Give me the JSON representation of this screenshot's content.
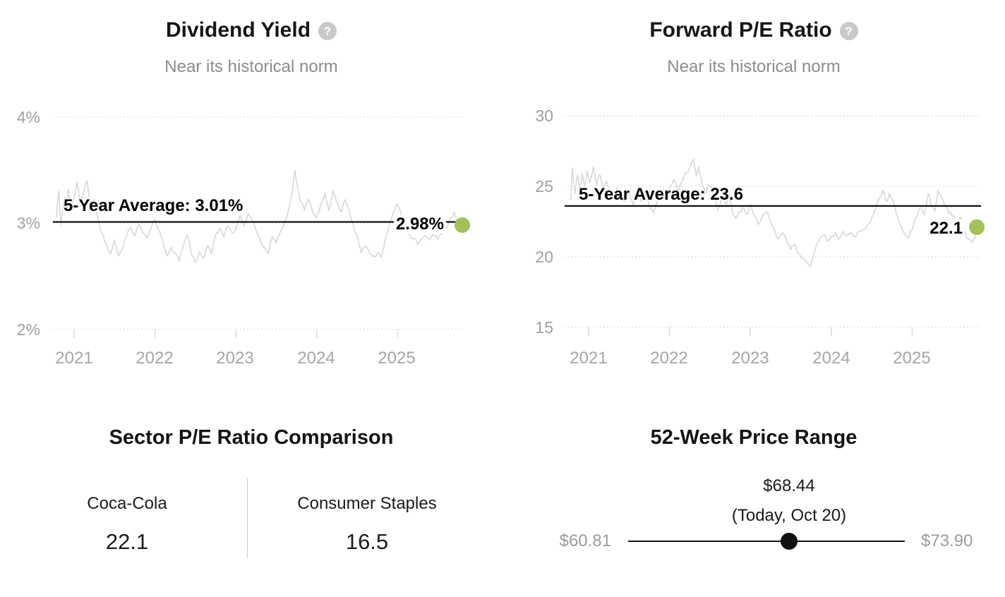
{
  "icons": {
    "help_glyph": "?"
  },
  "colors": {
    "accent_dot": "#a4c05a",
    "series_line": "#d8d8d8",
    "average_line": "#111111",
    "grid_dotted": "#d0d0d0",
    "tick_mark": "#d9d9d9"
  },
  "chart_data": [
    {
      "type": "line",
      "title": "Dividend Yield",
      "subtitle": "Near its historical norm",
      "unit": "%",
      "x_range": [
        2020.78,
        2025.8
      ],
      "x_tick_labels": [
        "2021",
        "2022",
        "2023",
        "2024",
        "2025"
      ],
      "x_ticks": [
        2021,
        2022,
        2023,
        2024,
        2025
      ],
      "y_gridlines": [
        4,
        3,
        2
      ],
      "y_tick_labels": [
        "4%",
        "3%",
        "2%"
      ],
      "grid": true,
      "average": {
        "label": "5-Year Average: 3.01%",
        "value": 3.01
      },
      "current": {
        "label": "2.98%",
        "value": 2.98
      },
      "series": [
        [
          2020.78,
          3.05
        ],
        [
          2020.81,
          3.3
        ],
        [
          2020.84,
          2.98
        ],
        [
          2020.87,
          3.2
        ],
        [
          2020.9,
          3.1
        ],
        [
          2020.93,
          3.32
        ],
        [
          2020.96,
          3.15
        ],
        [
          2021.0,
          3.25
        ],
        [
          2021.04,
          3.38
        ],
        [
          2021.08,
          3.16
        ],
        [
          2021.12,
          3.3
        ],
        [
          2021.16,
          3.4
        ],
        [
          2021.2,
          3.18
        ],
        [
          2021.25,
          3.22
        ],
        [
          2021.3,
          3.02
        ],
        [
          2021.35,
          2.9
        ],
        [
          2021.4,
          2.8
        ],
        [
          2021.45,
          2.71
        ],
        [
          2021.5,
          2.84
        ],
        [
          2021.55,
          2.69
        ],
        [
          2021.6,
          2.76
        ],
        [
          2021.65,
          2.88
        ],
        [
          2021.7,
          2.96
        ],
        [
          2021.75,
          2.88
        ],
        [
          2021.8,
          2.99
        ],
        [
          2021.85,
          2.91
        ],
        [
          2021.9,
          2.86
        ],
        [
          2021.95,
          2.95
        ],
        [
          2022.0,
          3.03
        ],
        [
          2022.05,
          2.93
        ],
        [
          2022.1,
          2.81
        ],
        [
          2022.15,
          2.69
        ],
        [
          2022.2,
          2.77
        ],
        [
          2022.25,
          2.72
        ],
        [
          2022.3,
          2.64
        ],
        [
          2022.35,
          2.79
        ],
        [
          2022.4,
          2.89
        ],
        [
          2022.45,
          2.71
        ],
        [
          2022.5,
          2.63
        ],
        [
          2022.55,
          2.73
        ],
        [
          2022.6,
          2.67
        ],
        [
          2022.65,
          2.79
        ],
        [
          2022.7,
          2.71
        ],
        [
          2022.75,
          2.89
        ],
        [
          2022.8,
          2.95
        ],
        [
          2022.85,
          2.87
        ],
        [
          2022.9,
          2.97
        ],
        [
          2022.95,
          2.91
        ],
        [
          2023.0,
          2.95
        ],
        [
          2023.05,
          3.07
        ],
        [
          2023.1,
          2.97
        ],
        [
          2023.15,
          3.09
        ],
        [
          2023.2,
          3.03
        ],
        [
          2023.25,
          2.93
        ],
        [
          2023.3,
          2.85
        ],
        [
          2023.35,
          2.77
        ],
        [
          2023.4,
          2.71
        ],
        [
          2023.45,
          2.87
        ],
        [
          2023.5,
          2.81
        ],
        [
          2023.55,
          2.92
        ],
        [
          2023.6,
          3.0
        ],
        [
          2023.65,
          3.12
        ],
        [
          2023.7,
          3.3
        ],
        [
          2023.73,
          3.5
        ],
        [
          2023.76,
          3.35
        ],
        [
          2023.8,
          3.2
        ],
        [
          2023.85,
          3.12
        ],
        [
          2023.9,
          3.22
        ],
        [
          2023.95,
          3.1
        ],
        [
          2024.0,
          3.05
        ],
        [
          2024.05,
          3.18
        ],
        [
          2024.1,
          3.28
        ],
        [
          2024.15,
          3.12
        ],
        [
          2024.2,
          3.3
        ],
        [
          2024.25,
          3.2
        ],
        [
          2024.3,
          3.1
        ],
        [
          2024.35,
          3.22
        ],
        [
          2024.4,
          3.12
        ],
        [
          2024.45,
          2.98
        ],
        [
          2024.5,
          2.88
        ],
        [
          2024.55,
          2.72
        ],
        [
          2024.6,
          2.78
        ],
        [
          2024.65,
          2.72
        ],
        [
          2024.7,
          2.68
        ],
        [
          2024.75,
          2.72
        ],
        [
          2024.8,
          2.68
        ],
        [
          2024.85,
          2.85
        ],
        [
          2024.9,
          3.0
        ],
        [
          2024.95,
          3.1
        ],
        [
          2025.0,
          3.18
        ],
        [
          2025.05,
          3.05
        ],
        [
          2025.1,
          2.95
        ],
        [
          2025.15,
          2.88
        ],
        [
          2025.2,
          2.85
        ],
        [
          2025.25,
          2.8
        ],
        [
          2025.3,
          2.85
        ],
        [
          2025.35,
          2.88
        ],
        [
          2025.4,
          2.84
        ],
        [
          2025.45,
          2.88
        ],
        [
          2025.5,
          2.85
        ],
        [
          2025.55,
          2.9
        ],
        [
          2025.6,
          2.95
        ],
        [
          2025.65,
          3.05
        ],
        [
          2025.7,
          3.1
        ],
        [
          2025.74,
          2.98
        ],
        [
          2025.78,
          2.94
        ],
        [
          2025.8,
          2.98
        ]
      ]
    },
    {
      "type": "line",
      "title": "Forward P/E Ratio",
      "subtitle": "Near its historical norm",
      "unit": "",
      "x_range": [
        2020.78,
        2025.8
      ],
      "x_tick_labels": [
        "2021",
        "2022",
        "2023",
        "2024",
        "2025"
      ],
      "x_ticks": [
        2021,
        2022,
        2023,
        2024,
        2025
      ],
      "y_gridlines": [
        30,
        25,
        20,
        15
      ],
      "y_tick_labels": [
        "30",
        "25",
        "20",
        "15"
      ],
      "grid": true,
      "average": {
        "label": "5-Year Average: 23.6",
        "value": 23.6
      },
      "current": {
        "label": "22.1",
        "value": 22.1
      },
      "series": [
        [
          2020.78,
          24.0
        ],
        [
          2020.8,
          26.3
        ],
        [
          2020.83,
          24.5
        ],
        [
          2020.86,
          25.8
        ],
        [
          2020.89,
          24.8
        ],
        [
          2020.92,
          25.9
        ],
        [
          2020.95,
          25.0
        ],
        [
          2020.98,
          26.1
        ],
        [
          2021.02,
          25.3
        ],
        [
          2021.06,
          26.4
        ],
        [
          2021.1,
          25.1
        ],
        [
          2021.14,
          25.8
        ],
        [
          2021.18,
          24.9
        ],
        [
          2021.22,
          25.4
        ],
        [
          2021.26,
          24.5
        ],
        [
          2021.3,
          24.1
        ],
        [
          2021.35,
          24.9
        ],
        [
          2021.4,
          24.3
        ],
        [
          2021.45,
          23.9
        ],
        [
          2021.5,
          24.6
        ],
        [
          2021.55,
          23.7
        ],
        [
          2021.6,
          24.5
        ],
        [
          2021.65,
          23.9
        ],
        [
          2021.7,
          24.7
        ],
        [
          2021.75,
          23.6
        ],
        [
          2021.8,
          23.1
        ],
        [
          2021.85,
          23.9
        ],
        [
          2021.9,
          24.5
        ],
        [
          2021.95,
          24.1
        ],
        [
          2022.0,
          24.9
        ],
        [
          2022.05,
          25.5
        ],
        [
          2022.1,
          24.7
        ],
        [
          2022.15,
          25.3
        ],
        [
          2022.2,
          26.0
        ],
        [
          2022.25,
          26.3
        ],
        [
          2022.3,
          26.9
        ],
        [
          2022.33,
          25.7
        ],
        [
          2022.36,
          26.4
        ],
        [
          2022.4,
          25.3
        ],
        [
          2022.44,
          24.5
        ],
        [
          2022.48,
          25.1
        ],
        [
          2022.52,
          24.9
        ],
        [
          2022.56,
          24.1
        ],
        [
          2022.6,
          23.3
        ],
        [
          2022.65,
          24.3
        ],
        [
          2022.7,
          23.7
        ],
        [
          2022.74,
          24.4
        ],
        [
          2022.78,
          23.1
        ],
        [
          2022.82,
          22.7
        ],
        [
          2022.86,
          23.2
        ],
        [
          2022.9,
          23.5
        ],
        [
          2022.95,
          23.0
        ],
        [
          2023.0,
          23.7
        ],
        [
          2023.05,
          22.9
        ],
        [
          2023.1,
          22.3
        ],
        [
          2023.15,
          22.9
        ],
        [
          2023.2,
          23.2
        ],
        [
          2023.25,
          22.5
        ],
        [
          2023.3,
          21.9
        ],
        [
          2023.35,
          21.3
        ],
        [
          2023.4,
          21.7
        ],
        [
          2023.45,
          21.1
        ],
        [
          2023.5,
          20.5
        ],
        [
          2023.55,
          20.9
        ],
        [
          2023.6,
          20.2
        ],
        [
          2023.65,
          19.9
        ],
        [
          2023.7,
          19.6
        ],
        [
          2023.75,
          19.4
        ],
        [
          2023.8,
          20.5
        ],
        [
          2023.85,
          21.1
        ],
        [
          2023.9,
          21.5
        ],
        [
          2023.95,
          21.1
        ],
        [
          2024.0,
          21.4
        ],
        [
          2024.05,
          21.7
        ],
        [
          2024.1,
          21.3
        ],
        [
          2024.15,
          21.8
        ],
        [
          2024.2,
          21.5
        ],
        [
          2024.25,
          21.7
        ],
        [
          2024.3,
          21.4
        ],
        [
          2024.35,
          21.8
        ],
        [
          2024.4,
          21.9
        ],
        [
          2024.45,
          22.3
        ],
        [
          2024.5,
          22.8
        ],
        [
          2024.55,
          23.4
        ],
        [
          2024.6,
          24.2
        ],
        [
          2024.64,
          24.7
        ],
        [
          2024.68,
          23.9
        ],
        [
          2024.72,
          24.5
        ],
        [
          2024.76,
          24.0
        ],
        [
          2024.8,
          23.2
        ],
        [
          2024.85,
          22.3
        ],
        [
          2024.9,
          21.7
        ],
        [
          2024.95,
          21.3
        ],
        [
          2025.0,
          21.9
        ],
        [
          2025.05,
          22.8
        ],
        [
          2025.1,
          23.5
        ],
        [
          2025.15,
          23.0
        ],
        [
          2025.2,
          24.5
        ],
        [
          2025.24,
          23.6
        ],
        [
          2025.28,
          23.2
        ],
        [
          2025.32,
          24.7
        ],
        [
          2025.36,
          24.3
        ],
        [
          2025.4,
          23.6
        ],
        [
          2025.45,
          23.1
        ],
        [
          2025.5,
          22.9
        ],
        [
          2025.55,
          22.4
        ],
        [
          2025.6,
          22.8
        ],
        [
          2025.65,
          21.9
        ],
        [
          2025.7,
          21.2
        ],
        [
          2025.74,
          21.0
        ],
        [
          2025.78,
          21.4
        ],
        [
          2025.8,
          22.1
        ]
      ]
    },
    {
      "type": "table",
      "title": "Sector P/E Ratio Comparison",
      "columns": [
        {
          "label": "Coca-Cola",
          "value": "22.1"
        },
        {
          "label": "Consumer Staples",
          "value": "16.5"
        }
      ]
    },
    {
      "type": "range",
      "title": "52-Week Price Range",
      "low": {
        "label": "$60.81",
        "value": 60.81
      },
      "high": {
        "label": "$73.90",
        "value": 73.9
      },
      "current": {
        "label": "$68.44",
        "sublabel": "(Today, Oct 20)",
        "value": 68.44
      }
    }
  ]
}
